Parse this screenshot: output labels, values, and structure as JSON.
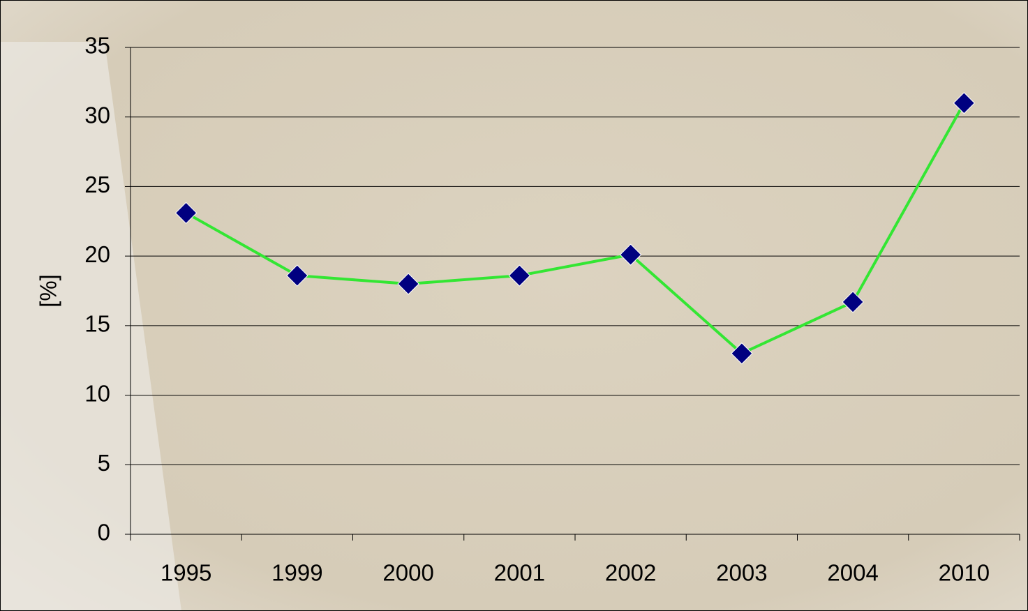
{
  "chart_data": {
    "type": "line",
    "y_label": "[%]",
    "categories": [
      "1995",
      "1999",
      "2000",
      "2001",
      "2002",
      "2003",
      "2004",
      "2010"
    ],
    "series": [
      {
        "color": "#33e633",
        "marker_color": "#000080",
        "values": [
          23.1,
          18.6,
          18.0,
          18.6,
          20.1,
          13.0,
          16.7,
          31.0
        ]
      }
    ],
    "ylim": [
      0,
      35
    ],
    "yticks": [
      0,
      5,
      10,
      15,
      20,
      25,
      30,
      35
    ],
    "grid": true
  }
}
